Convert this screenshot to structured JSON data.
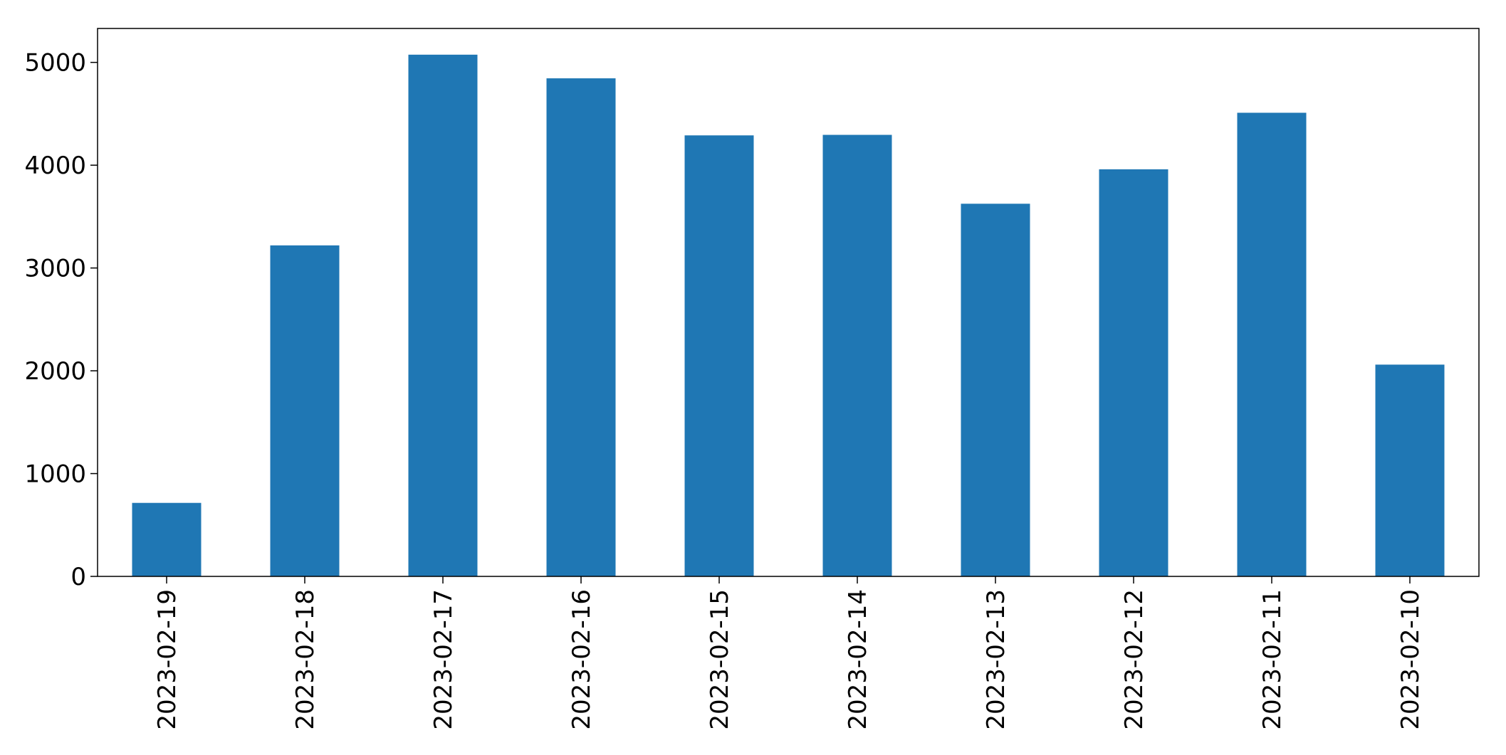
{
  "chart_data": {
    "type": "bar",
    "title": "",
    "xlabel": "",
    "ylabel": "",
    "categories": [
      "2023-02-19",
      "2023-02-18",
      "2023-02-17",
      "2023-02-16",
      "2023-02-15",
      "2023-02-14",
      "2023-02-13",
      "2023-02-12",
      "2023-02-11",
      "2023-02-10"
    ],
    "values": [
      715,
      3220,
      5075,
      4845,
      4290,
      4295,
      3625,
      3960,
      4510,
      2060
    ],
    "ylim": [
      0,
      5330
    ],
    "yticks": [
      0,
      1000,
      2000,
      3000,
      4000,
      5000
    ],
    "bar_color": "#1f77b4",
    "grid": false,
    "legend": "none"
  }
}
